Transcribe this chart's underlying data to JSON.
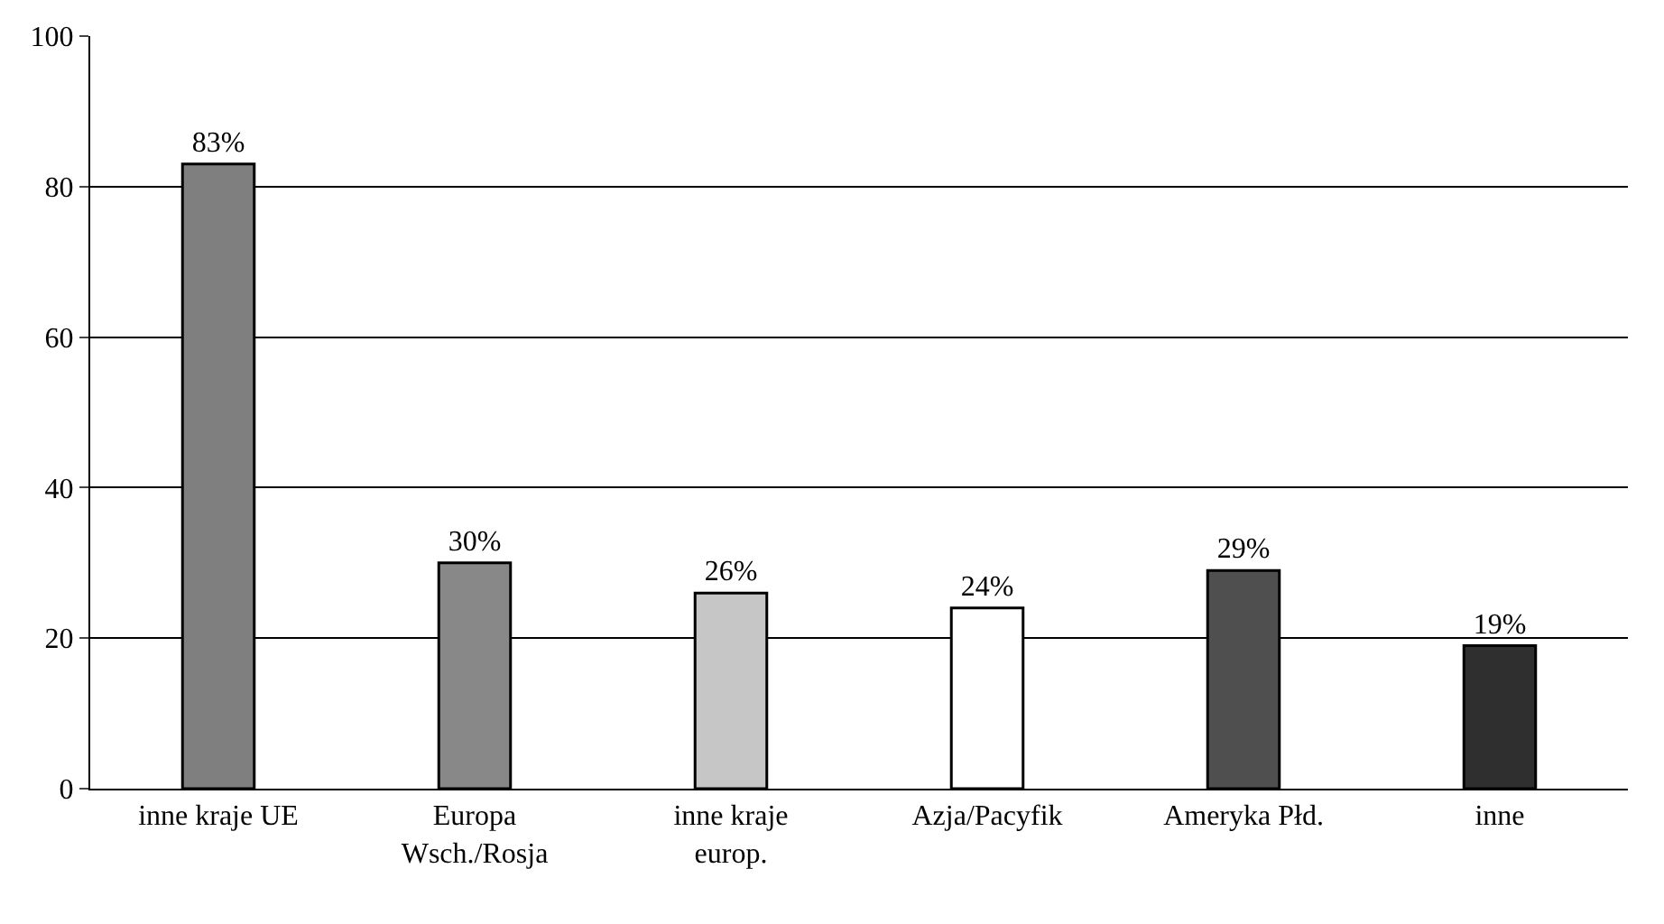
{
  "chart_data": {
    "type": "bar",
    "categories": [
      "inne kraje UE",
      "Europa\nWsch./Rosja",
      "inne kraje\neurop.",
      "Azja/Pacyfik",
      "Ameryka Płd.",
      "inne"
    ],
    "values": [
      83,
      30,
      26,
      24,
      29,
      19
    ],
    "colors": [
      "#7f7f7f",
      "#888888",
      "#c6c6c6",
      "#ffffff",
      "#4f4f4f",
      "#2f2f2f"
    ],
    "value_labels": [
      "83%",
      "30%",
      "26%",
      "24%",
      "29%",
      "19%"
    ],
    "ylim": [
      0,
      100
    ],
    "yticks": [
      0,
      20,
      40,
      60,
      80,
      100
    ],
    "grid": "y"
  }
}
